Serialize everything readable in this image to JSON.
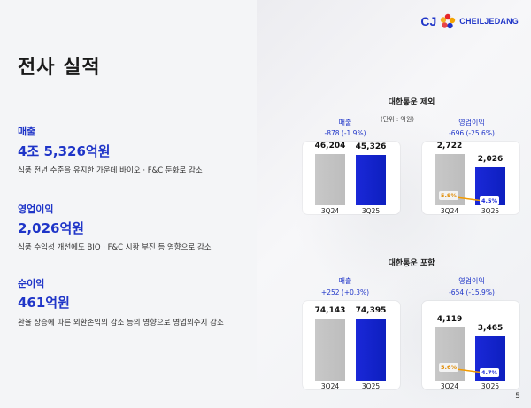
{
  "page": {
    "title": "전사 실적",
    "number": "5"
  },
  "logo": {
    "cj": "CJ",
    "name": "CHEILJEDANG"
  },
  "metrics": [
    {
      "label": "매출",
      "value": "4조 5,326억원",
      "desc": "식품 전년 수준을 유지한 가운데 바이오 · F&C 둔화로 감소"
    },
    {
      "label": "영업이익",
      "value": "2,026억원",
      "desc": "식품 수익성 개선에도 BIO · F&C 시황 부진 등 영향으로 감소"
    },
    {
      "label": "순이익",
      "value": "461억원",
      "desc": "환율 상승에 따른 외환손익의 감소 등의 영향으로 영업외수지 감소"
    }
  ],
  "colors": {
    "accent": "#1f35c8",
    "bar_prev": "#c4c4c4",
    "bar_curr": "#1424cc",
    "opm_line": "#f29a00"
  },
  "sections": [
    {
      "title": "대한통운 제외",
      "unit": "(단위 : 억원)",
      "charts": [
        {
          "head": "매출",
          "sub": "-878 (-1.9%)",
          "categories": [
            "3Q24",
            "3Q25"
          ],
          "values": [
            46204,
            45326
          ],
          "labels": [
            "46,204",
            "45,326"
          ]
        },
        {
          "head": "영업이익",
          "sub": "-696 (-25.6%)",
          "categories": [
            "3Q24",
            "3Q25"
          ],
          "values": [
            2722,
            2026
          ],
          "labels": [
            "2,722",
            "2,026"
          ],
          "margins": [
            "5.9%",
            "4.5%"
          ]
        }
      ]
    },
    {
      "title": "대한통운 포함",
      "unit": "",
      "charts": [
        {
          "head": "매출",
          "sub": "+252 (+0.3%)",
          "categories": [
            "3Q24",
            "3Q25"
          ],
          "values": [
            74143,
            74395
          ],
          "labels": [
            "74,143",
            "74,395"
          ]
        },
        {
          "head": "영업이익",
          "sub": "-654 (-15.9%)",
          "categories": [
            "3Q24",
            "3Q25"
          ],
          "values": [
            4119,
            3465
          ],
          "labels": [
            "4,119",
            "3,465"
          ],
          "margins": [
            "5.6%",
            "4.7%"
          ]
        }
      ]
    }
  ],
  "chart_data": [
    {
      "type": "bar",
      "title": "대한통운 제외 매출",
      "categories": [
        "3Q24",
        "3Q25"
      ],
      "values": [
        46204,
        45326
      ]
    },
    {
      "type": "bar",
      "title": "대한통운 제외 영업이익",
      "categories": [
        "3Q24",
        "3Q25"
      ],
      "values": [
        2722,
        2026
      ],
      "line": {
        "name": "OPM",
        "values": [
          5.9,
          4.5
        ]
      }
    },
    {
      "type": "bar",
      "title": "대한통운 포함 매출",
      "categories": [
        "3Q24",
        "3Q25"
      ],
      "values": [
        74143,
        74395
      ]
    },
    {
      "type": "bar",
      "title": "대한통운 포함 영업이익",
      "categories": [
        "3Q24",
        "3Q25"
      ],
      "values": [
        4119,
        3465
      ],
      "line": {
        "name": "OPM",
        "values": [
          5.6,
          4.7
        ]
      }
    }
  ]
}
